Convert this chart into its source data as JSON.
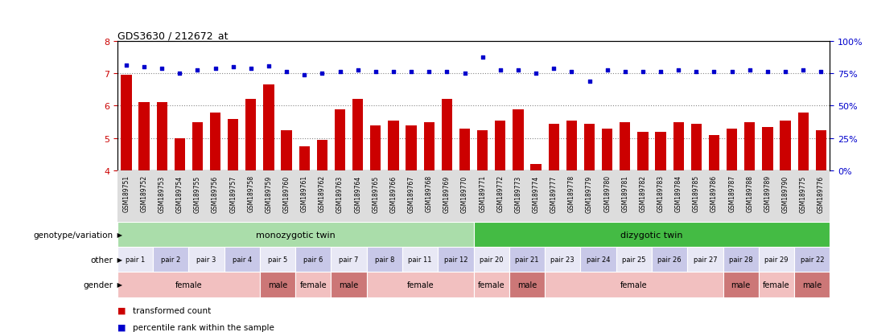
{
  "title": "GDS3630 / 212672_at",
  "samples": [
    "GSM189751",
    "GSM189752",
    "GSM189753",
    "GSM189754",
    "GSM189755",
    "GSM189756",
    "GSM189757",
    "GSM189758",
    "GSM189759",
    "GSM189760",
    "GSM189761",
    "GSM189762",
    "GSM189763",
    "GSM189764",
    "GSM189765",
    "GSM189766",
    "GSM189767",
    "GSM189768",
    "GSM189769",
    "GSM189770",
    "GSM189771",
    "GSM189772",
    "GSM189773",
    "GSM189774",
    "GSM189777",
    "GSM189778",
    "GSM189779",
    "GSM189780",
    "GSM189781",
    "GSM189782",
    "GSM189783",
    "GSM189784",
    "GSM189785",
    "GSM189786",
    "GSM189787",
    "GSM189788",
    "GSM189789",
    "GSM189790",
    "GSM189775",
    "GSM189776"
  ],
  "bar_values": [
    6.95,
    6.1,
    6.1,
    5.0,
    5.5,
    5.8,
    5.6,
    6.2,
    6.65,
    5.25,
    4.75,
    4.95,
    5.9,
    6.2,
    5.4,
    5.55,
    5.4,
    5.5,
    6.2,
    5.3,
    5.25,
    5.55,
    5.9,
    4.2,
    5.45,
    5.55,
    5.45,
    5.3,
    5.5,
    5.2,
    5.2,
    5.5,
    5.45,
    5.1,
    5.3,
    5.5,
    5.35,
    5.55,
    5.8,
    5.25
  ],
  "percentile_values": [
    7.25,
    7.2,
    7.15,
    7.0,
    7.1,
    7.15,
    7.2,
    7.15,
    7.22,
    7.05,
    6.95,
    7.0,
    7.05,
    7.1,
    7.05,
    7.05,
    7.05,
    7.05,
    7.05,
    7.0,
    7.5,
    7.1,
    7.1,
    7.0,
    7.15,
    7.05,
    6.75,
    7.1,
    7.05,
    7.05,
    7.05,
    7.1,
    7.05,
    7.05,
    7.05,
    7.1,
    7.05,
    7.05,
    7.1,
    7.05
  ],
  "ylim": [
    4.0,
    8.0
  ],
  "yticks_left": [
    4,
    5,
    6,
    7,
    8
  ],
  "right_yticks_pct": [
    0,
    25,
    50,
    75,
    100
  ],
  "bar_color": "#cc0000",
  "dot_color": "#0000cc",
  "bg_color": "#ffffff",
  "grid_color": "#888888",
  "left_tick_color": "#cc0000",
  "right_tick_color": "#0000cc",
  "genotype_groups": [
    {
      "label": "monozygotic twin",
      "start": 0,
      "end": 20,
      "color": "#aaddaa"
    },
    {
      "label": "dizygotic twin",
      "start": 20,
      "end": 40,
      "color": "#44bb44"
    }
  ],
  "pair_labels": [
    "pair 1",
    "pair 2",
    "pair 3",
    "pair 4",
    "pair 5",
    "pair 6",
    "pair 7",
    "pair 8",
    "pair 11",
    "pair 12",
    "pair 20",
    "pair 21",
    "pair 23",
    "pair 24",
    "pair 25",
    "pair 26",
    "pair 27",
    "pair 28",
    "pair 29",
    "pair 22"
  ],
  "pair_colors_alt": [
    "#e8e8f5",
    "#c8c8e8"
  ],
  "gender_groups": [
    {
      "label": "female",
      "start": 0,
      "end": 8,
      "color": "#f2c0c0"
    },
    {
      "label": "male",
      "start": 8,
      "end": 10,
      "color": "#cc7777"
    },
    {
      "label": "female",
      "start": 10,
      "end": 12,
      "color": "#f2c0c0"
    },
    {
      "label": "male",
      "start": 12,
      "end": 14,
      "color": "#cc7777"
    },
    {
      "label": "female",
      "start": 14,
      "end": 20,
      "color": "#f2c0c0"
    },
    {
      "label": "female",
      "start": 20,
      "end": 22,
      "color": "#f2c0c0"
    },
    {
      "label": "male",
      "start": 22,
      "end": 24,
      "color": "#cc7777"
    },
    {
      "label": "female",
      "start": 24,
      "end": 34,
      "color": "#f2c0c0"
    },
    {
      "label": "male",
      "start": 34,
      "end": 36,
      "color": "#cc7777"
    },
    {
      "label": "female",
      "start": 36,
      "end": 38,
      "color": "#f2c0c0"
    },
    {
      "label": "male",
      "start": 38,
      "end": 40,
      "color": "#cc7777"
    }
  ],
  "legend_bar_label": "transformed count",
  "legend_dot_label": "percentile rank within the sample",
  "row_labels": [
    "genotype/variation",
    "other",
    "gender"
  ]
}
